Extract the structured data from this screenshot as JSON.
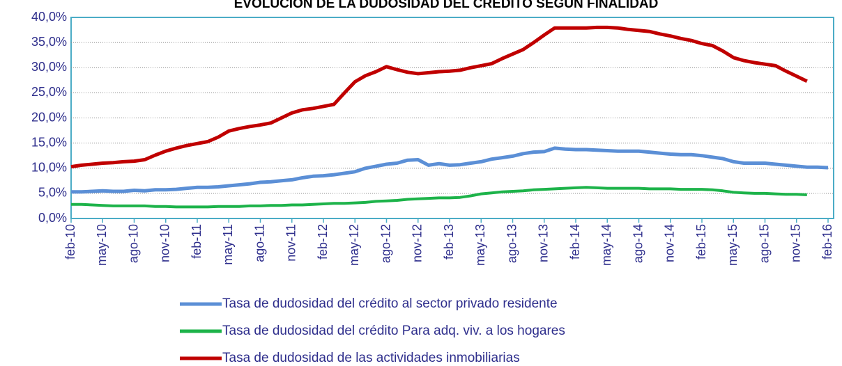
{
  "chart_data": {
    "type": "line",
    "title": "EVOLUCIÓN DE LA DUDOSIDAD DEL CRÉDITO SEGÚN FINALIDAD",
    "categories": [
      "feb-10",
      null,
      null,
      "may-10",
      null,
      null,
      "ago-10",
      null,
      null,
      "nov-10",
      null,
      null,
      "feb-11",
      null,
      null,
      "may-11",
      null,
      null,
      "ago-11",
      null,
      null,
      "nov-11",
      null,
      null,
      "feb-12",
      null,
      null,
      "may-12",
      null,
      null,
      "ago-12",
      null,
      null,
      "nov-12",
      null,
      null,
      "feb-13",
      null,
      null,
      "may-13",
      null,
      null,
      "ago-13",
      null,
      null,
      "nov-13",
      null,
      null,
      "feb-14",
      null,
      null,
      "may-14",
      null,
      null,
      "ago-14",
      null,
      null,
      "nov-14",
      null,
      null,
      "feb-15",
      null,
      null,
      "may-15",
      null,
      null,
      "ago-15",
      null,
      null,
      "nov-15",
      null,
      null,
      "feb-16"
    ],
    "series": [
      {
        "name": "Tasa de dudosidad del crédito al sector privado residente",
        "color": "#5b8fd6",
        "values": [
          5.3,
          5.3,
          5.4,
          5.5,
          5.4,
          5.4,
          5.6,
          5.5,
          5.7,
          5.7,
          5.8,
          6.0,
          6.2,
          6.2,
          6.3,
          6.5,
          6.7,
          6.9,
          7.2,
          7.3,
          7.5,
          7.7,
          8.1,
          8.4,
          8.5,
          8.7,
          9.0,
          9.3,
          10.0,
          10.4,
          10.8,
          11.0,
          11.6,
          11.7,
          10.6,
          10.9,
          10.6,
          10.7,
          11.0,
          11.3,
          11.8,
          12.1,
          12.4,
          12.9,
          13.2,
          13.3,
          14.0,
          13.8,
          13.7,
          13.7,
          13.6,
          13.5,
          13.4,
          13.4,
          13.4,
          13.2,
          13.0,
          12.8,
          12.7,
          12.7,
          12.5,
          12.2,
          11.9,
          11.3,
          11.0,
          11.0,
          11.0,
          10.8,
          10.6,
          10.4,
          10.2,
          10.2,
          10.1
        ]
      },
      {
        "name": "Tasa de dudosidad del crédito Para adq. viv. a los hogares",
        "color": "#1db34a",
        "values": [
          2.8,
          2.8,
          2.7,
          2.6,
          2.5,
          2.5,
          2.5,
          2.5,
          2.4,
          2.4,
          2.3,
          2.3,
          2.3,
          2.3,
          2.4,
          2.4,
          2.4,
          2.5,
          2.5,
          2.6,
          2.6,
          2.7,
          2.7,
          2.8,
          2.9,
          3.0,
          3.0,
          3.1,
          3.2,
          3.4,
          3.5,
          3.6,
          3.8,
          3.9,
          4.0,
          4.1,
          4.1,
          4.2,
          4.5,
          4.9,
          5.1,
          5.3,
          5.4,
          5.5,
          5.7,
          5.8,
          5.9,
          6.0,
          6.1,
          6.2,
          6.1,
          6.0,
          6.0,
          6.0,
          6.0,
          5.9,
          5.9,
          5.9,
          5.8,
          5.8,
          5.8,
          5.7,
          5.5,
          5.2,
          5.1,
          5.0,
          5.0,
          4.9,
          4.8,
          4.8,
          4.7,
          null,
          null
        ]
      },
      {
        "name": "Tasa de dudosidad de las actividades inmobiliarias",
        "color": "#c00000",
        "values": [
          10.3,
          10.6,
          10.8,
          11.0,
          11.1,
          11.3,
          11.4,
          11.7,
          12.6,
          13.4,
          14.0,
          14.5,
          14.9,
          15.3,
          16.2,
          17.4,
          17.9,
          18.3,
          18.6,
          19.0,
          20.0,
          21.0,
          21.6,
          21.9,
          22.3,
          22.7,
          25.0,
          27.2,
          28.4,
          29.2,
          30.2,
          29.6,
          29.1,
          28.8,
          29.0,
          29.2,
          29.3,
          29.5,
          30.0,
          30.4,
          30.8,
          31.8,
          32.7,
          33.6,
          35.0,
          36.5,
          37.9,
          37.9,
          37.9,
          37.9,
          38.0,
          38.0,
          37.9,
          37.6,
          37.4,
          37.2,
          36.7,
          36.3,
          35.8,
          35.4,
          34.8,
          34.4,
          33.3,
          32.0,
          31.4,
          31.0,
          30.7,
          30.4,
          29.3,
          28.3,
          27.3,
          null,
          null
        ]
      }
    ],
    "ylim": [
      0,
      40
    ],
    "yticks": [
      {
        "value": 0,
        "label": "0,0%"
      },
      {
        "value": 5,
        "label": "5,0%"
      },
      {
        "value": 10,
        "label": "10,0%"
      },
      {
        "value": 15,
        "label": "15,0%"
      },
      {
        "value": 20,
        "label": "20,0%"
      },
      {
        "value": 25,
        "label": "25,0%"
      },
      {
        "value": 30,
        "label": "30,0%"
      },
      {
        "value": 35,
        "label": "35,0%"
      },
      {
        "value": 40,
        "label": "40,0%"
      }
    ],
    "grid": true
  }
}
